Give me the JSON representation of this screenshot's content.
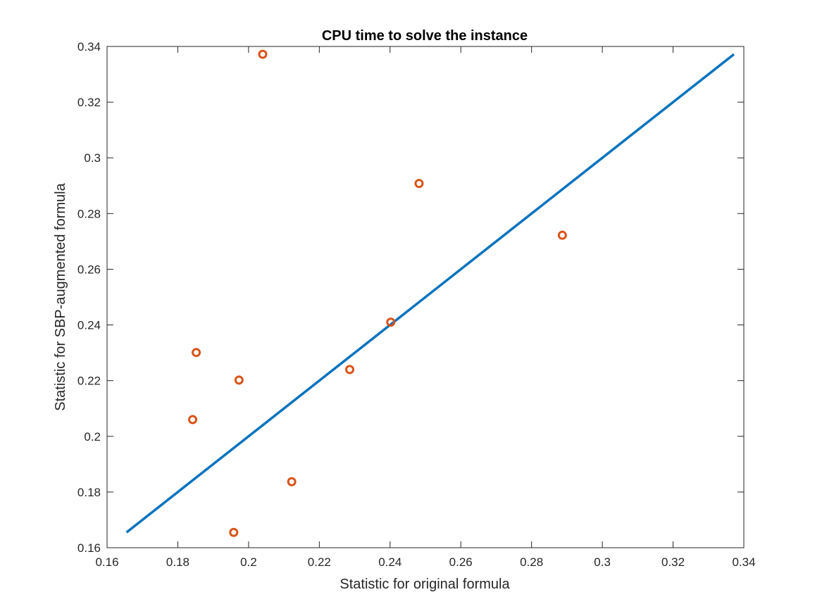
{
  "chart_data": {
    "type": "scatter",
    "title": "CPU time to solve the instance",
    "xlabel": "Statistic for original formula",
    "ylabel": "Statistic for SBP-augmented formula",
    "xlim": [
      0.16,
      0.34
    ],
    "ylim": [
      0.16,
      0.34
    ],
    "xticks": [
      0.16,
      0.18,
      0.2,
      0.22,
      0.24,
      0.26,
      0.28,
      0.3,
      0.32,
      0.34
    ],
    "yticks": [
      0.16,
      0.18,
      0.2,
      0.22,
      0.24,
      0.26,
      0.28,
      0.3,
      0.32,
      0.34
    ],
    "grid": false,
    "series": [
      {
        "kind": "points",
        "marker": "circle",
        "color": "#d95319",
        "points": [
          {
            "x": 0.204,
            "y": 0.3372
          },
          {
            "x": 0.2482,
            "y": 0.2908
          },
          {
            "x": 0.2887,
            "y": 0.2722
          },
          {
            "x": 0.2402,
            "y": 0.241
          },
          {
            "x": 0.2286,
            "y": 0.224
          },
          {
            "x": 0.1852,
            "y": 0.2301
          },
          {
            "x": 0.1973,
            "y": 0.2202
          },
          {
            "x": 0.1842,
            "y": 0.206
          },
          {
            "x": 0.2122,
            "y": 0.1837
          },
          {
            "x": 0.1958,
            "y": 0.1655
          }
        ]
      },
      {
        "kind": "line",
        "color": "#0072bd",
        "points": [
          {
            "x": 0.1655,
            "y": 0.1655
          },
          {
            "x": 0.3372,
            "y": 0.3372
          }
        ]
      }
    ]
  }
}
